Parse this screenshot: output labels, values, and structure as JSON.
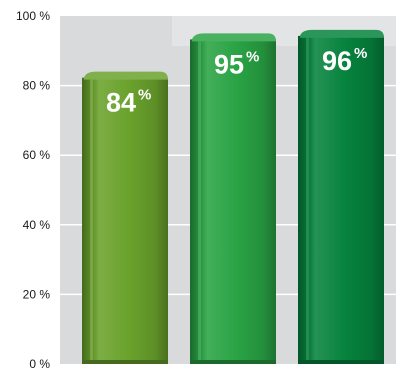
{
  "chart_data": {
    "type": "bar",
    "categories": [
      "",
      "",
      ""
    ],
    "values": [
      84,
      95,
      96
    ],
    "value_labels": [
      "84",
      "95",
      "96"
    ],
    "value_unit": "%",
    "ylim": [
      0,
      100
    ],
    "yticks": [
      {
        "value": 0,
        "label": "0 %"
      },
      {
        "value": 20,
        "label": "20 %"
      },
      {
        "value": 40,
        "label": "40 %"
      },
      {
        "value": 60,
        "label": "60 %"
      },
      {
        "value": 80,
        "label": "80 %"
      },
      {
        "value": 100,
        "label": "100 %"
      }
    ],
    "grid": true,
    "bar_colors": [
      "#6aa22c",
      "#29a344",
      "#06833d"
    ],
    "background_color": "#d9dadb",
    "gridline_color": "#ffffff"
  }
}
